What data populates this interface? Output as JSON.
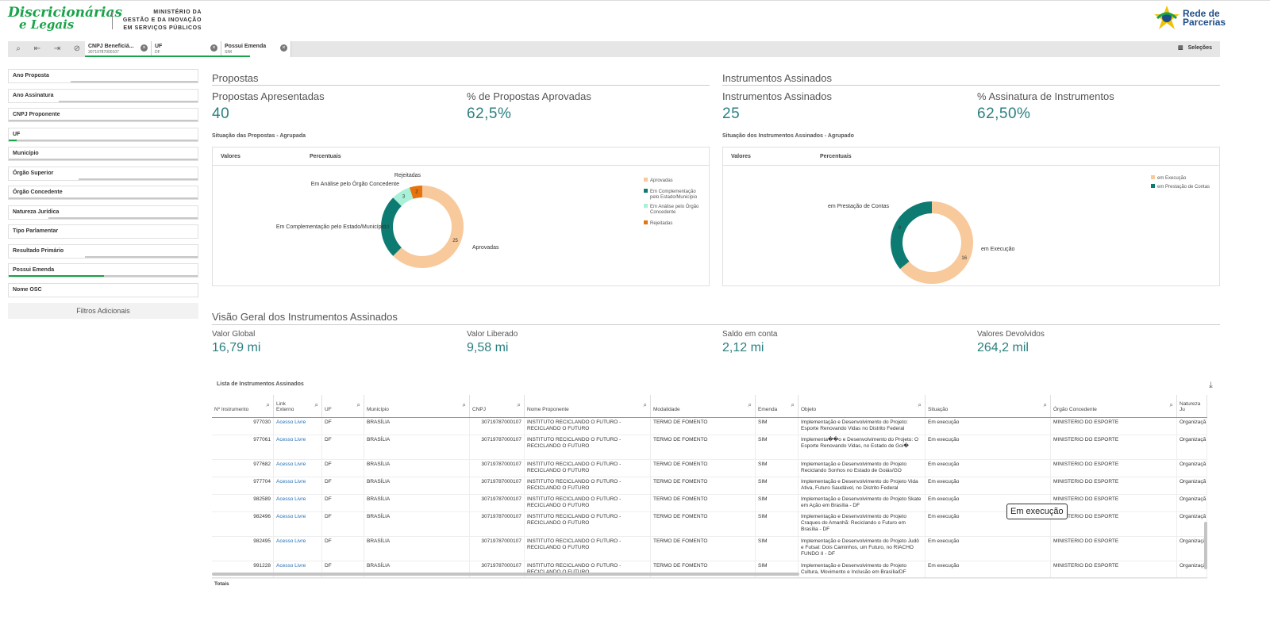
{
  "header": {
    "logo_line1": "Discricionárias",
    "logo_line2": "e Legais",
    "ministry_l1": "MINISTÉRIO DA",
    "ministry_l2": "GESTÃO E DA INOVAÇÃO",
    "ministry_l3": "EM SERVIÇOS PÚBLICOS",
    "brand_l1": "Rede de",
    "brand_l2": "Parcerias"
  },
  "selection_bar": {
    "chips": [
      {
        "title": "CNPJ Beneficiá...",
        "value": "30719787000107"
      },
      {
        "title": "UF",
        "value": "DF"
      },
      {
        "title": "Possui Emenda",
        "value": "SIM"
      }
    ],
    "selecoes_label": "Seleções"
  },
  "filters": {
    "items": [
      "Ano Proposta",
      "Ano Assinatura",
      "CNPJ Proponente",
      "UF",
      "Município",
      "Órgão Superior",
      "Órgão Concedente",
      "Natureza Jurídica",
      "Tipo Parlamentar",
      "Resultado Primário",
      "Possui Emenda",
      "Nome OSC"
    ],
    "additional_label": "Filtros Adicionais"
  },
  "propostas": {
    "section_title": "Propostas",
    "kpi1_label": "Propostas Apresentadas",
    "kpi1_value": "40",
    "kpi2_label": "% de Propostas Aprovadas",
    "kpi2_value": "62,5%",
    "chart_title": "Situação das Propostas - Agrupada",
    "tab1": "Valores",
    "tab2": "Percentuais"
  },
  "instrumentos": {
    "section_title": "Instrumentos Assinados",
    "kpi1_label": "Instrumentos Assinados",
    "kpi1_value": "25",
    "kpi2_label": "% Assinatura de Instrumentos",
    "kpi2_value": "62,50%",
    "chart_title": "Situação dos Instrumentos Assinados - Agrupado",
    "tab1": "Valores",
    "tab2": "Percentuais"
  },
  "visao": {
    "section_title": "Visão Geral dos Instrumentos Assinados",
    "k1_label": "Valor Global",
    "k1_value": "16,79 mi",
    "k2_label": "Valor Liberado",
    "k2_value": "9,58 mi",
    "k3_label": "Saldo em conta",
    "k3_value": "2,12 mi",
    "k4_label": "Valores Devolvidos",
    "k4_value": "264,2 mil"
  },
  "chart_data": [
    {
      "type": "pie",
      "title": "Situação das Propostas - Agrupada",
      "donut": true,
      "categories": [
        "Aprovadas",
        "Em Complementação pelo Estado/Município",
        "Em Análise pelo Órgão Concedente",
        "Rejeitadas"
      ],
      "values": [
        25,
        10,
        3,
        2
      ],
      "colors": [
        "#f7c99b",
        "#0e7b72",
        "#a8f0d8",
        "#e7730f"
      ],
      "legend_position": "right",
      "legend_labels": [
        "Aprovadas",
        "Em Complementação pelo Estado/Município",
        "Em Análise pelo Órgão Concedente",
        "Rejeitadas"
      ]
    },
    {
      "type": "pie",
      "title": "Situação dos Instrumentos Assinados - Agrupado",
      "donut": true,
      "categories": [
        "em Execução",
        "em Prestação de Contas"
      ],
      "values": [
        16,
        9
      ],
      "colors": [
        "#f7c99b",
        "#0e7b72"
      ],
      "legend_position": "right",
      "legend_labels": [
        "em Execução",
        "em Prestação de Contas"
      ]
    }
  ],
  "table": {
    "title": "Lista de Instrumentos Assinados",
    "headers": [
      "Nº Instrumento",
      "Link Externo",
      "UF",
      "Município",
      "CNPJ",
      "Nome Proponente",
      "Modalidade",
      "Emenda",
      "Objeto",
      "Situação",
      "Órgão Concedente",
      "Natureza Ju"
    ],
    "rows": [
      [
        "977030",
        "Acesso Livre",
        "DF",
        "BRASÍLIA",
        "30719787000107",
        "INSTITUTO RECICLANDO O FUTURO - RECICLANDO O FUTURO",
        "TERMO DE FOMENTO",
        "SIM",
        "Implementação e Desenvolvimento do Projeto: Esporte Renovando Vidas no Distrito Federal",
        "Em execução",
        "MINISTERIO DO ESPORTE",
        "Organizaçã"
      ],
      [
        "977061",
        "Acesso Livre",
        "DF",
        "BRASÍLIA",
        "30719787000107",
        "INSTITUTO RECICLANDO O FUTURO - RECICLANDO O FUTURO",
        "TERMO DE FOMENTO",
        "SIM",
        "Implementa��o e Desenvolvimento do Projeto: O Esporte Renovando Vidas, no Estado de Goi�",
        "Em execução",
        "MINISTERIO DO ESPORTE",
        "Organizaçã"
      ],
      [
        "977682",
        "Acesso Livre",
        "DF",
        "BRASÍLIA",
        "30719787000107",
        "INSTITUTO RECICLANDO O FUTURO - RECICLANDO O FUTURO",
        "TERMO DE FOMENTO",
        "SIM",
        "Implementação e Desenvolvimento do Projeto Reciclando Sonhos no Estado de Goiás/GO",
        "Em execução",
        "MINISTERIO DO ESPORTE",
        "Organizaçã"
      ],
      [
        "977704",
        "Acesso Livre",
        "DF",
        "BRASÍLIA",
        "30719787000107",
        "INSTITUTO RECICLANDO O FUTURO - RECICLANDO O FUTURO",
        "TERMO DE FOMENTO",
        "SIM",
        "Implementação e Desenvolvimento do Projeto Vida Ativa, Futuro Saudável, no Distrito Federal",
        "Em execução",
        "MINISTERIO DO ESPORTE",
        "Organizaçã"
      ],
      [
        "982589",
        "Acesso Livre",
        "DF",
        "BRASÍLIA",
        "30719787000107",
        "INSTITUTO RECICLANDO O FUTURO - RECICLANDO O FUTURO",
        "TERMO DE FOMENTO",
        "SIM",
        "Implementação e Desenvolvimento do Projeto Skate em Ação em Brasília - DF",
        "Em execução",
        "MINISTERIO DO ESPORTE",
        "Organizaçã"
      ],
      [
        "982496",
        "Acesso Livre",
        "DF",
        "BRASÍLIA",
        "30719787000107",
        "INSTITUTO RECICLANDO O FUTURO - RECICLANDO O FUTURO",
        "TERMO DE FOMENTO",
        "SIM",
        "Implementação e Desenvolvimento do Projeto Craques do Amanhã: Reciclando o Futuro em Brasília - DF",
        "Em execução",
        "MINISTERIO DO ESPORTE",
        "Organizaçã"
      ],
      [
        "982495",
        "Acesso Livre",
        "DF",
        "BRASÍLIA",
        "30719787000107",
        "INSTITUTO RECICLANDO O FUTURO - RECICLANDO O FUTURO",
        "TERMO DE FOMENTO",
        "SIM",
        "Implementação e Desenvolvimento do Projeto Judô e Futsal: Dois Caminhos, um Futuro, no RIACHO FUNDO II - DF",
        "Em execução",
        "MINISTERIO DO ESPORTE",
        "Organizaçã"
      ],
      [
        "991228",
        "Acesso Livre",
        "DF",
        "BRASÍLIA",
        "30719787000107",
        "INSTITUTO RECICLANDO O FUTURO - RECICLANDO O FUTURO",
        "TERMO DE FOMENTO",
        "SIM",
        "Implementação e Desenvolvimento do Projeto Cultura, Movimento e Inclusão em Brasília/DF",
        "Em execução",
        "MINISTERIO DO ESPORTE",
        "Organizaçã"
      ]
    ],
    "totals_label": "Totais"
  },
  "tooltip": {
    "text": "Em execução"
  }
}
